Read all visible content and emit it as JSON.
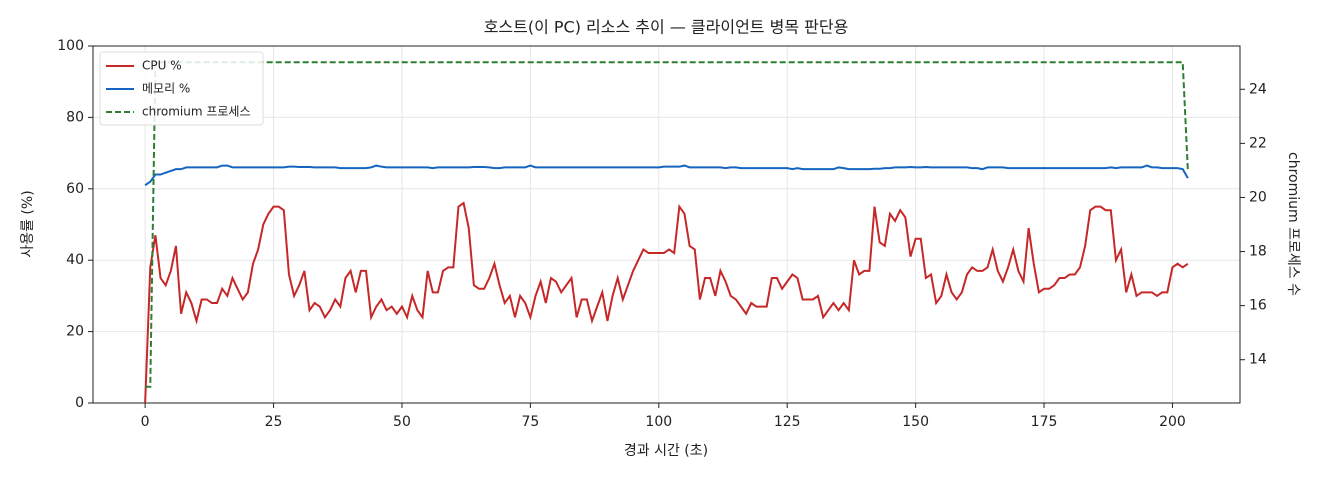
{
  "chart_data": {
    "type": "line",
    "title": "호스트(이 PC) 리소스 추이 — 클라이언트 병목 판단용",
    "x_label": "경과 시간 (초)",
    "y_label": "사용률 (%)",
    "y2_label": "chromium 프로세스 수",
    "x": [
      0,
      1,
      2,
      3,
      4,
      5,
      6,
      7,
      8,
      9,
      10,
      11,
      12,
      13,
      14,
      15,
      16,
      17,
      18,
      19,
      20,
      21,
      22,
      23,
      24,
      25,
      26,
      27,
      28,
      29,
      30,
      31,
      32,
      33,
      34,
      35,
      36,
      37,
      38,
      39,
      40,
      41,
      42,
      43,
      44,
      45,
      46,
      47,
      48,
      49,
      50,
      51,
      52,
      53,
      54,
      55,
      56,
      57,
      58,
      59,
      60,
      61,
      62,
      63,
      64,
      65,
      66,
      67,
      68,
      69,
      70,
      71,
      72,
      73,
      74,
      75,
      76,
      77,
      78,
      79,
      80,
      81,
      82,
      83,
      84,
      85,
      86,
      87,
      88,
      89,
      90,
      91,
      92,
      93,
      94,
      95,
      96,
      97,
      98,
      99,
      100,
      101,
      102,
      103,
      104,
      105,
      106,
      107,
      108,
      109,
      110,
      111,
      112,
      113,
      114,
      115,
      116,
      117,
      118,
      119,
      120,
      121,
      122,
      123,
      124,
      125,
      126,
      127,
      128,
      129,
      130,
      131,
      132,
      133,
      134,
      135,
      136,
      137,
      138,
      139,
      140,
      141,
      142,
      143,
      144,
      145,
      146,
      147,
      148,
      149,
      150,
      151,
      152,
      153,
      154,
      155,
      156,
      157,
      158,
      159,
      160,
      161,
      162,
      163,
      164,
      165,
      166,
      167,
      168,
      169,
      170,
      171,
      172,
      173,
      174,
      175,
      176,
      177,
      178,
      179,
      180,
      181,
      182,
      183,
      184,
      185,
      186,
      187,
      188,
      189,
      190,
      191,
      192,
      193,
      194,
      195,
      196,
      197,
      198,
      199,
      200,
      201,
      202,
      203
    ],
    "series": [
      {
        "name": "CPU %",
        "color": "#c62828",
        "dash": false,
        "axis": "y",
        "values": [
          0,
          38,
          47,
          35,
          33,
          37,
          44,
          25,
          31,
          28,
          23,
          29,
          29,
          28,
          28,
          32,
          30,
          35,
          32,
          29,
          31,
          39,
          43,
          50,
          53,
          55,
          55,
          54,
          36,
          30,
          33,
          37,
          26,
          28,
          27,
          24,
          26,
          29,
          27,
          35,
          37,
          31,
          37,
          37,
          24,
          27,
          29,
          26,
          27,
          25,
          27,
          24,
          30,
          26,
          24,
          37,
          31,
          31,
          37,
          38,
          38,
          55,
          56,
          49,
          33,
          32,
          32,
          35,
          39,
          33,
          28,
          30,
          24,
          30,
          28,
          24,
          30,
          34,
          28,
          35,
          34,
          31,
          33,
          35,
          24,
          29,
          29,
          23,
          27,
          31,
          23,
          30,
          35,
          29,
          33,
          37,
          40,
          43,
          42,
          42,
          42,
          42,
          43,
          42,
          55,
          53,
          44,
          43,
          29,
          35,
          35,
          30,
          37,
          34,
          30,
          29,
          27,
          25,
          28,
          27,
          27,
          27,
          35,
          35,
          32,
          34,
          36,
          35,
          29,
          29,
          29,
          30,
          24,
          26,
          28,
          26,
          28,
          26,
          40,
          36,
          37,
          37,
          55,
          45,
          44,
          53,
          51,
          54,
          52,
          41,
          46,
          46,
          35,
          36,
          28,
          30,
          36,
          31,
          29,
          31,
          36,
          38,
          37,
          37,
          38,
          43,
          37,
          34,
          38,
          43,
          37,
          34,
          49,
          39,
          31,
          32,
          32,
          33,
          35,
          35,
          36,
          36,
          38,
          44,
          54,
          55,
          55,
          54,
          54,
          40,
          43,
          31,
          36,
          30,
          31,
          31,
          31,
          30,
          31,
          31,
          38,
          39,
          38,
          39
        ]
      },
      {
        "name": "메모리 %",
        "color": "#1565c0",
        "dash": false,
        "axis": "y",
        "values": [
          61,
          62,
          64,
          64,
          64.5,
          65,
          65.5,
          65.5,
          66,
          66,
          66,
          66,
          66,
          66,
          66,
          66.5,
          66.5,
          66,
          66,
          66,
          66,
          66,
          66,
          66,
          66,
          66,
          66,
          66,
          66.2,
          66.2,
          66.1,
          66.1,
          66.1,
          66,
          66,
          66,
          66,
          66,
          65.8,
          65.8,
          65.8,
          65.8,
          65.8,
          65.8,
          66,
          66.5,
          66.2,
          66,
          66,
          66,
          66,
          66,
          66,
          66,
          66,
          66,
          65.8,
          66,
          66,
          66,
          66,
          66,
          66,
          66,
          66.1,
          66.1,
          66.1,
          66,
          65.8,
          65.8,
          66,
          66,
          66,
          66,
          66,
          66.5,
          66,
          66,
          66,
          66,
          66,
          66,
          66,
          66,
          66,
          66,
          66,
          66,
          66,
          66,
          66,
          66,
          66,
          66,
          66,
          66,
          66,
          66,
          66,
          66,
          66,
          66.2,
          66.2,
          66.2,
          66.2,
          66.5,
          66,
          66,
          66,
          66,
          66,
          66,
          66,
          65.8,
          66,
          66,
          65.8,
          65.8,
          65.8,
          65.8,
          65.8,
          65.8,
          65.8,
          65.8,
          65.8,
          65.8,
          65.5,
          65.8,
          65.5,
          65.5,
          65.5,
          65.5,
          65.5,
          65.5,
          65.5,
          66,
          65.8,
          65.5,
          65.5,
          65.5,
          65.5,
          65.5,
          65.6,
          65.6,
          65.8,
          65.8,
          66,
          66,
          66,
          66.1,
          66,
          66,
          66.1,
          66,
          66,
          66,
          66,
          66,
          66,
          66,
          66,
          65.8,
          65.8,
          65.5,
          66,
          66,
          66,
          66,
          65.8,
          65.8,
          65.8,
          65.8,
          65.8,
          65.8,
          65.8,
          65.8,
          65.8,
          65.8,
          65.8,
          65.8,
          65.8,
          65.8,
          65.8,
          65.8,
          65.8,
          65.8,
          65.8,
          65.8,
          66,
          65.8,
          66,
          66,
          66,
          66,
          66,
          66.5,
          66,
          66,
          65.8,
          65.8,
          65.8,
          65.8,
          65.5,
          63
        ]
      },
      {
        "name": "chromium 프로세스",
        "color": "#2e7d32",
        "dash": true,
        "axis": "y2",
        "values": [
          13,
          13,
          25,
          25,
          25,
          25,
          25,
          25,
          25,
          25,
          25,
          25,
          25,
          25,
          25,
          25,
          25,
          25,
          25,
          25,
          25,
          25,
          25,
          25,
          25,
          25,
          25,
          25,
          25,
          25,
          25,
          25,
          25,
          25,
          25,
          25,
          25,
          25,
          25,
          25,
          25,
          25,
          25,
          25,
          25,
          25,
          25,
          25,
          25,
          25,
          25,
          25,
          25,
          25,
          25,
          25,
          25,
          25,
          25,
          25,
          25,
          25,
          25,
          25,
          25,
          25,
          25,
          25,
          25,
          25,
          25,
          25,
          25,
          25,
          25,
          25,
          25,
          25,
          25,
          25,
          25,
          25,
          25,
          25,
          25,
          25,
          25,
          25,
          25,
          25,
          25,
          25,
          25,
          25,
          25,
          25,
          25,
          25,
          25,
          25,
          25,
          25,
          25,
          25,
          25,
          25,
          25,
          25,
          25,
          25,
          25,
          25,
          25,
          25,
          25,
          25,
          25,
          25,
          25,
          25,
          25,
          25,
          25,
          25,
          25,
          25,
          25,
          25,
          25,
          25,
          25,
          25,
          25,
          25,
          25,
          25,
          25,
          25,
          25,
          25,
          25,
          25,
          25,
          25,
          25,
          25,
          25,
          25,
          25,
          25,
          25,
          25,
          25,
          25,
          25,
          25,
          25,
          25,
          25,
          25,
          25,
          25,
          25,
          25,
          25,
          25,
          25,
          25,
          25,
          25,
          25,
          25,
          25,
          25,
          25,
          25,
          25,
          25,
          25,
          25,
          25,
          25,
          25,
          25,
          25,
          25,
          25,
          25,
          25,
          25,
          25,
          25,
          25,
          25,
          25,
          25,
          25,
          25,
          25,
          25,
          25,
          25,
          25,
          21
        ]
      }
    ],
    "xlim": [
      -10.15,
      213.15
    ],
    "xticks": [
      0,
      25,
      50,
      75,
      100,
      125,
      150,
      175,
      200
    ],
    "ylim": [
      0,
      100
    ],
    "yticks": [
      0,
      20,
      40,
      60,
      80,
      100
    ],
    "y2lim": [
      12.4,
      25.6
    ],
    "y2ticks": [
      14,
      16,
      18,
      20,
      22,
      24
    ],
    "grid": true,
    "legend": "upper left"
  }
}
